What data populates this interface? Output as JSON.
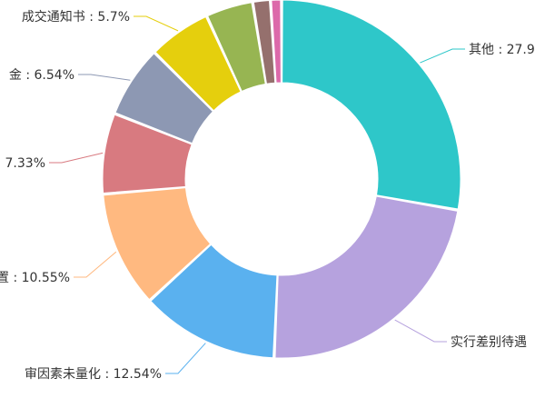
{
  "chart_data": {
    "type": "pie",
    "variant": "donut",
    "legend": "none",
    "labels_outside": true,
    "slices": [
      {
        "label": "其他 : 27.9",
        "name": "其他",
        "value": 27.9,
        "color": "#2ec7c9"
      },
      {
        "label": "实行差别待遇",
        "name": "实行差别待遇",
        "value": 23.0,
        "color": "#b6a2de"
      },
      {
        "label": "审因素未量化 : 12.54%",
        "name": "审因素未量化",
        "value": 12.54,
        "color": "#5ab1ef"
      },
      {
        "label": "置 : 10.55%",
        "name": "置",
        "value": 10.55,
        "color": "#ffb980"
      },
      {
        "label": "7.33%",
        "name": "",
        "value": 7.33,
        "color": "#d87a80"
      },
      {
        "label": "金 : 6.54%",
        "name": "金",
        "value": 6.54,
        "color": "#8d98b3"
      },
      {
        "label": "成交通知书 : 5.7%",
        "name": "成交通知书",
        "value": 5.7,
        "color": "#e5cf0d"
      },
      {
        "label": "",
        "name": "",
        "value": 4.3,
        "color": "#97b552"
      },
      {
        "label": "",
        "name": "",
        "value": 1.6,
        "color": "#95706d"
      },
      {
        "label": "",
        "name": "",
        "value": 1.0,
        "color": "#dc69aa"
      }
    ]
  }
}
